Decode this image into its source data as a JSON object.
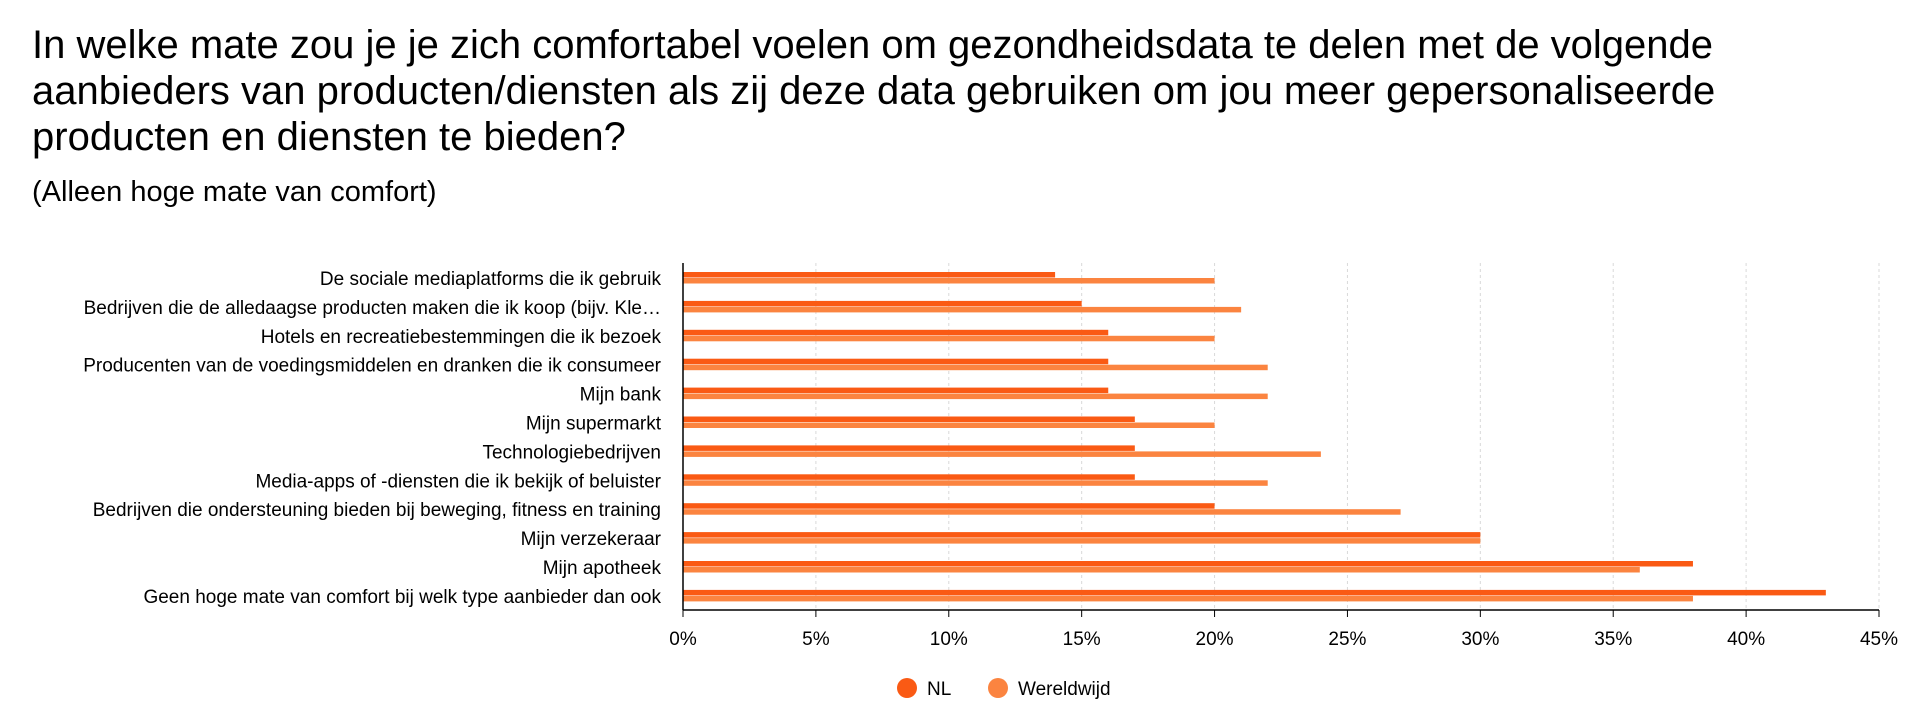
{
  "chart_data": {
    "type": "bar",
    "orientation": "horizontal",
    "title": "In welke mate zou je je zich comfortabel voelen om gezondheidsdata te delen met de volgende aanbieders van producten/diensten als zij deze data gebruiken om jou meer gepersonaliseerde producten en diensten te bieden?",
    "subtitle": "(Alleen hoge mate van comfort)",
    "categories": [
      "De sociale mediaplatforms die ik gebruik",
      "Bedrijven die de alledaagse producten maken die ik koop (bijv. Kle…",
      "Hotels en recreatiebestemmingen die ik bezoek",
      "Producenten van de voedingsmiddelen en dranken die ik consumeer",
      "Mijn bank",
      "Mijn supermarkt",
      "Technologiebedrijven",
      "Media-apps of -diensten die ik bekijk of beluister",
      "Bedrijven die ondersteuning bieden bij beweging, fitness en training",
      "Mijn verzekeraar",
      "Mijn apotheek",
      "Geen hoge mate van comfort bij welk type aanbieder dan ook"
    ],
    "series": [
      {
        "name": "NL",
        "color": "#FA5A14",
        "values": [
          14,
          15,
          16,
          16,
          16,
          17,
          17,
          17,
          20,
          30,
          38,
          43
        ]
      },
      {
        "name": "Wereldwijd",
        "color": "#FB8440",
        "values": [
          20,
          21,
          20,
          22,
          22,
          20,
          24,
          22,
          27,
          30,
          36,
          38
        ]
      }
    ],
    "xlim": [
      0,
      45
    ],
    "xticks": [
      "0%",
      "5%",
      "10%",
      "15%",
      "20%",
      "25%",
      "30%",
      "35%",
      "40%",
      "45%"
    ],
    "unit": "%",
    "grid": "vertical dashed",
    "legend": "bottom-center"
  }
}
